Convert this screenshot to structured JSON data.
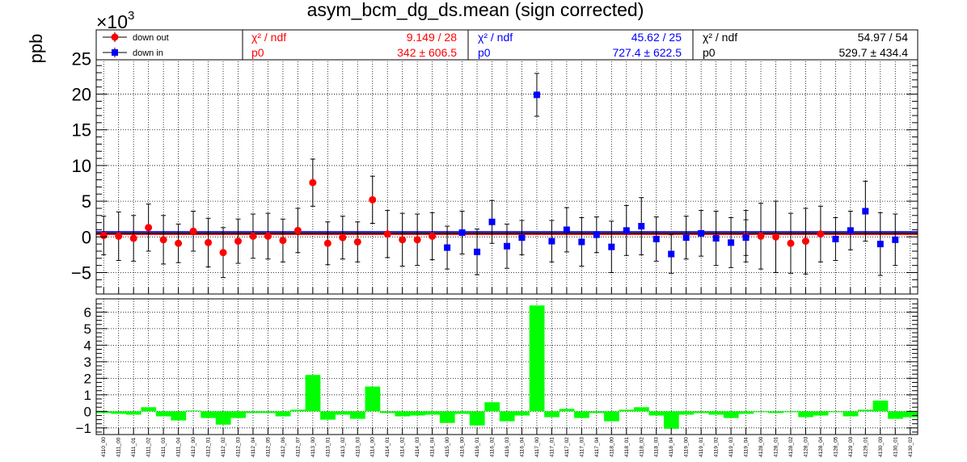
{
  "chart_data": [
    {
      "type": "scatter",
      "title": "asym_bcm_dg_ds.mean (sign corrected)",
      "ylabel": "ppb",
      "y_multiplier": "×10",
      "y_multiplier_exp": "3",
      "ylim": [
        -8,
        29
      ],
      "yticks": [
        "−5",
        "0",
        "5",
        "10",
        "15",
        "20",
        "25"
      ],
      "grid": true,
      "legend": {
        "position": "top",
        "entries": [
          {
            "label": "down out",
            "color": "#ff0000",
            "marker": "circle"
          },
          {
            "label": "down in",
            "color": "#0000ff",
            "marker": "square"
          }
        ]
      },
      "fits": [
        {
          "color": "#ff0000",
          "chi2_label": "χ² / ndf",
          "chi2_value": "9.149 / 28",
          "p0_label": "p0",
          "p0_value": "342 ± 606.5",
          "p0": 0.342
        },
        {
          "color": "#0000ff",
          "chi2_label": "χ² / ndf",
          "chi2_value": "45.62 / 25",
          "p0_label": "p0",
          "p0_value": "727.4 ± 622.5",
          "p0": 0.7274
        },
        {
          "color": "#000000",
          "chi2_label": "χ² / ndf",
          "chi2_value": "54.97 / 54",
          "p0_label": "p0",
          "p0_value": "529.7 ± 434.4",
          "p0": 0.5297
        }
      ],
      "series": [
        {
          "name": "down out",
          "color": "#ff0000",
          "marker": "circle",
          "points": [
            [
              0,
              0.2,
              2.7
            ],
            [
              1,
              0.1,
              3.4
            ],
            [
              2,
              -0.2,
              3.2
            ],
            [
              3,
              1.3,
              3.3
            ],
            [
              4,
              -0.4,
              3.4
            ],
            [
              5,
              -0.9,
              2.7
            ],
            [
              6,
              0.8,
              2.8
            ],
            [
              7,
              -0.8,
              3.4
            ],
            [
              8,
              -2.2,
              3.5
            ],
            [
              9,
              -0.6,
              3.1
            ],
            [
              10,
              0.1,
              3.1
            ],
            [
              11,
              0.1,
              3.2
            ],
            [
              12,
              -0.5,
              3.0
            ],
            [
              13,
              0.9,
              3.1
            ],
            [
              14,
              7.6,
              3.3
            ],
            [
              15,
              -0.9,
              3.0
            ],
            [
              16,
              -0.1,
              3.0
            ],
            [
              17,
              -0.7,
              2.8
            ],
            [
              18,
              5.2,
              3.3
            ],
            [
              19,
              0.4,
              3.3
            ],
            [
              20,
              -0.4,
              3.7
            ],
            [
              21,
              -0.4,
              3.6
            ],
            [
              22,
              0.1,
              3.3
            ],
            [
              43,
              0.1,
              3.6
            ],
            [
              44,
              0.1,
              4.6
            ],
            [
              45,
              0.0,
              5.0
            ],
            [
              46,
              -0.9,
              4.2
            ],
            [
              47,
              -0.6,
              4.6
            ],
            [
              48,
              0.4,
              3.9
            ]
          ]
        },
        {
          "name": "down in",
          "color": "#0000ff",
          "marker": "square",
          "points": [
            [
              23,
              -1.5,
              3.0
            ],
            [
              24,
              0.6,
              3.0
            ],
            [
              25,
              -2.1,
              3.2
            ],
            [
              26,
              2.1,
              3.0
            ],
            [
              27,
              -1.3,
              3.1
            ],
            [
              28,
              -0.1,
              2.4
            ],
            [
              29,
              19.9,
              3.0
            ],
            [
              30,
              -0.6,
              2.9
            ],
            [
              31,
              1.0,
              3.1
            ],
            [
              32,
              -0.7,
              3.4
            ],
            [
              33,
              0.3,
              2.5
            ],
            [
              34,
              -1.4,
              3.6
            ],
            [
              35,
              0.9,
              3.5
            ],
            [
              36,
              1.5,
              4.0
            ],
            [
              37,
              -0.3,
              3.1
            ],
            [
              38,
              -2.4,
              2.7
            ],
            [
              39,
              -0.1,
              3.0
            ],
            [
              40,
              0.5,
              3.2
            ],
            [
              41,
              -0.2,
              3.8
            ],
            [
              42,
              -0.8,
              3.5
            ],
            [
              43,
              -0.1,
              2.5
            ],
            [
              49,
              -0.3,
              3.0
            ],
            [
              50,
              0.9,
              2.7
            ],
            [
              51,
              3.6,
              4.2
            ],
            [
              52,
              -1.0,
              4.4
            ],
            [
              53,
              -0.4,
              3.6
            ]
          ]
        }
      ]
    },
    {
      "type": "bar",
      "ylim": [
        -1.4,
        6.8
      ],
      "yticks": [
        "−1",
        "0",
        "1",
        "2",
        "3",
        "4",
        "5",
        "6"
      ],
      "grid": true,
      "color": "#00ff00",
      "categories": [
        "4110_00",
        "4111_00",
        "4111_01",
        "4111_02",
        "4111_03",
        "4111_04",
        "4112_00",
        "4112_01",
        "4112_02",
        "4112_03",
        "4112_04",
        "4112_05",
        "4112_06",
        "4112_07",
        "4113_00",
        "4113_01",
        "4113_02",
        "4113_03",
        "4114_00",
        "4114_01",
        "4114_02",
        "4114_03",
        "4114_04",
        "4115_00",
        "4116_00",
        "4116_01",
        "4116_02",
        "4116_03",
        "4116_04",
        "4117_00",
        "4117_01",
        "4117_02",
        "4117_03",
        "4117_04",
        "4118_00",
        "4118_01",
        "4118_02",
        "4118_03",
        "4118_04",
        "4119_00",
        "4119_01",
        "4119_02",
        "4119_03",
        "4119_04",
        "4128_00",
        "4128_01",
        "4128_02",
        "4128_03",
        "4128_04",
        "4128_05",
        "4129_00",
        "4129_01",
        "4130_00",
        "4130_01",
        "4130_02"
      ],
      "values": [
        -0.1,
        -0.15,
        -0.2,
        0.25,
        -0.3,
        -0.55,
        0.05,
        -0.4,
        -0.8,
        -0.4,
        -0.1,
        -0.1,
        -0.3,
        0.1,
        2.2,
        -0.5,
        -0.2,
        -0.45,
        1.5,
        -0.1,
        -0.3,
        -0.25,
        -0.2,
        -0.7,
        -0.15,
        -0.85,
        0.55,
        -0.6,
        -0.25,
        6.4,
        -0.35,
        0.15,
        -0.4,
        -0.1,
        -0.6,
        0.1,
        0.25,
        -0.25,
        -1.05,
        -0.2,
        -0.1,
        -0.2,
        -0.4,
        -0.15,
        -0.05,
        -0.1,
        -0.05,
        -0.35,
        -0.25,
        -0.05,
        -0.3,
        0.1,
        0.65,
        -0.45,
        -0.35
      ]
    }
  ]
}
